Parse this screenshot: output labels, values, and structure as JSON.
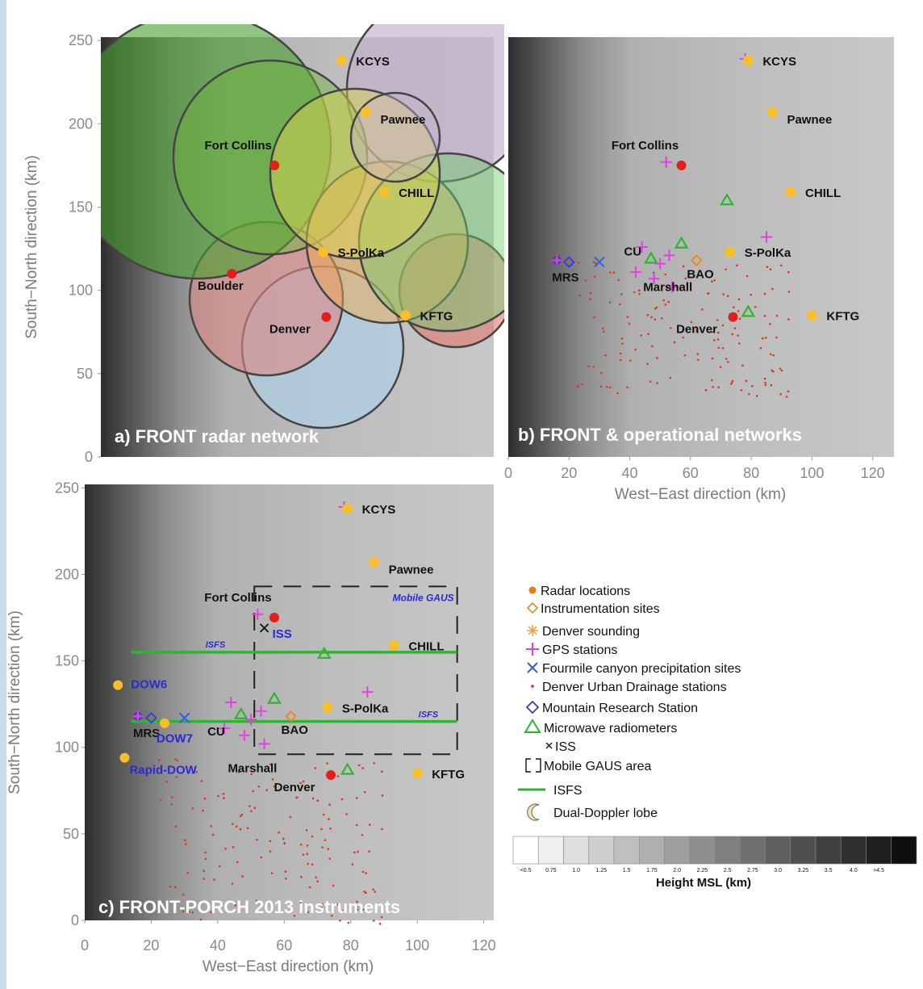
{
  "panels": [
    {
      "label": "a) FRONT radar network",
      "xlim": [
        0,
        129
      ],
      "ylim": [
        0,
        252
      ],
      "yticks": [
        0,
        50,
        100,
        150,
        200,
        250
      ],
      "y_label": "South−North direction (km)"
    },
    {
      "label": "b) FRONT & operational networks",
      "xlim": [
        0,
        127
      ],
      "ylim": [
        0,
        252
      ],
      "xticks": [
        0,
        20,
        40,
        60,
        80,
        100,
        120
      ],
      "x_label": "West−East direction (km)"
    },
    {
      "label": "c) FRONT-PORCH 2013 instruments",
      "xlim": [
        0,
        123
      ],
      "ylim": [
        0,
        252
      ],
      "xticks": [
        0,
        20,
        40,
        60,
        80,
        100,
        120
      ],
      "yticks": [
        0,
        50,
        100,
        150,
        200,
        250
      ],
      "x_label": "West−East direction (km)",
      "y_label": "South−North direction (km)"
    }
  ],
  "radars": [
    {
      "name": "KCYS",
      "x": 79,
      "y": 238
    },
    {
      "name": "Pawnee",
      "x": 87,
      "y": 207
    },
    {
      "name": "CHILL",
      "x": 93,
      "y": 159
    },
    {
      "name": "S-PolKa",
      "x": 73,
      "y": 123
    },
    {
      "name": "KFTG",
      "x": 100,
      "y": 85
    }
  ],
  "cities": [
    {
      "name": "Fort Collins",
      "x": 57,
      "y": 175
    },
    {
      "name": "Denver",
      "x": 74,
      "y": 84
    },
    {
      "name": "Boulder",
      "x": 43,
      "y": 110
    }
  ],
  "gps": [
    {
      "x": 78,
      "y": 239
    },
    {
      "x": 52,
      "y": 177
    },
    {
      "x": 85,
      "y": 132
    },
    {
      "x": 44,
      "y": 126
    },
    {
      "x": 53,
      "y": 121
    },
    {
      "x": 50,
      "y": 116
    },
    {
      "x": 42,
      "y": 111
    },
    {
      "x": 48,
      "y": 107
    },
    {
      "x": 54,
      "y": 102
    },
    {
      "x": 16,
      "y": 118
    }
  ],
  "radiometers": [
    {
      "x": 72,
      "y": 154
    },
    {
      "x": 57,
      "y": 128
    },
    {
      "x": 47,
      "y": 119
    },
    {
      "x": 79,
      "y": 87
    }
  ],
  "instrument_sites": [
    {
      "name": "BAO",
      "x": 62,
      "y": 118
    }
  ],
  "mrs": {
    "name": "MRS",
    "points": [
      {
        "x": 16,
        "y": 118
      },
      {
        "x": 20,
        "y": 117
      }
    ]
  },
  "fourmile": [
    {
      "x": 30,
      "y": 117
    }
  ],
  "place_labels": [
    "CU",
    "Marshall"
  ],
  "dows": [
    {
      "name": "DOW6",
      "x": 10,
      "y": 136
    },
    {
      "name": "DOW7",
      "x": 24,
      "y": 114
    },
    {
      "name": "Rapid-DOW",
      "x": 12,
      "y": 94
    }
  ],
  "iss": {
    "name": "ISS",
    "x": 54,
    "y": 169
  },
  "isfs": {
    "name": "ISFS",
    "lines": [
      {
        "y": 155,
        "x": [
          14,
          112
        ]
      },
      {
        "y": 115,
        "x": [
          14,
          112
        ]
      }
    ]
  },
  "mobile_gaus": {
    "name": "Mobile GAUS",
    "x": [
      51,
      112
    ],
    "y": [
      96,
      193
    ]
  },
  "legend": {
    "items": [
      "Radar locations",
      "Instrumentation sites",
      "Denver sounding",
      "GPS stations",
      "Fourmile canyon precipitation sites",
      "Denver Urban Drainage stations",
      "Mountain Research Station",
      "Microwave radiometers",
      "ISS",
      "Mobile GAUS area",
      "ISFS",
      "Dual-Doppler lobe"
    ]
  },
  "colorbar": {
    "title": "Height MSL (km)",
    "labels": [
      "<0.5",
      "0.75",
      "1.0",
      "1.25",
      "1.5",
      "1.75",
      "2.0",
      "2.25",
      "2.5",
      "2.75",
      "3.0",
      "3.25",
      "3.5",
      "4.0",
      ">4.5"
    ]
  }
}
